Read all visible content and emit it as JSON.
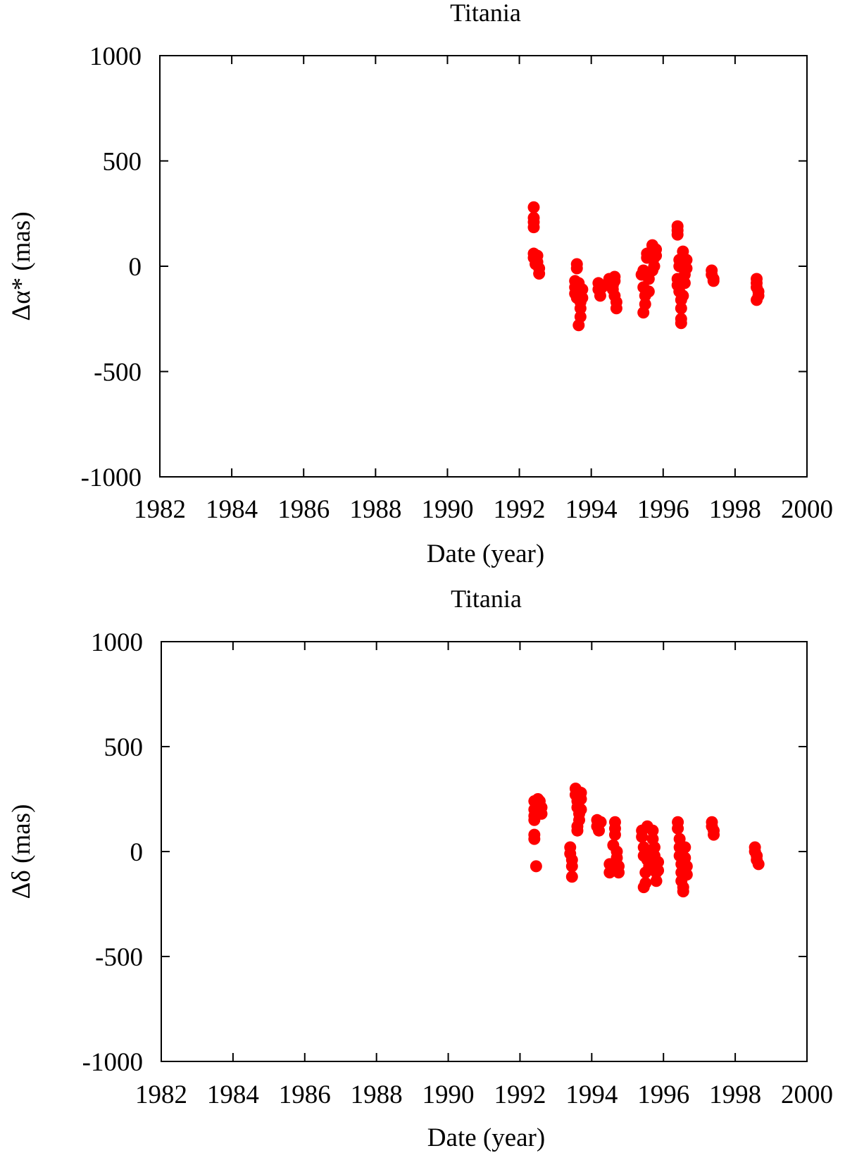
{
  "chart_data": [
    {
      "type": "scatter",
      "title": "Titania",
      "xlabel": "Date (year)",
      "ylabel": "Δα* (mas)",
      "xlim": [
        1982,
        2000
      ],
      "ylim": [
        -1000,
        1000
      ],
      "xticks": [
        1982,
        1984,
        1986,
        1988,
        1990,
        1992,
        1994,
        1996,
        1998,
        2000
      ],
      "yticks": [
        1000,
        500,
        0,
        -500,
        -1000
      ],
      "grid": false,
      "marker_color": "#ff0000",
      "points": [
        [
          1992.4,
          280
        ],
        [
          1992.4,
          230
        ],
        [
          1992.4,
          210
        ],
        [
          1992.4,
          185
        ],
        [
          1992.4,
          60
        ],
        [
          1992.4,
          40
        ],
        [
          1992.45,
          30
        ],
        [
          1992.45,
          10
        ],
        [
          1992.5,
          50
        ],
        [
          1992.5,
          20
        ],
        [
          1992.55,
          -10
        ],
        [
          1992.55,
          -35
        ],
        [
          1993.6,
          10
        ],
        [
          1993.6,
          -10
        ],
        [
          1993.55,
          -70
        ],
        [
          1993.55,
          -100
        ],
        [
          1993.55,
          -130
        ],
        [
          1993.6,
          -150
        ],
        [
          1993.65,
          -80
        ],
        [
          1993.65,
          -120
        ],
        [
          1993.7,
          -170
        ],
        [
          1993.7,
          -200
        ],
        [
          1993.7,
          -240
        ],
        [
          1993.65,
          -280
        ],
        [
          1993.75,
          -110
        ],
        [
          1993.75,
          -150
        ],
        [
          1994.2,
          -80
        ],
        [
          1994.2,
          -110
        ],
        [
          1994.25,
          -140
        ],
        [
          1994.3,
          -100
        ],
        [
          1994.5,
          -60
        ],
        [
          1994.55,
          -80
        ],
        [
          1994.6,
          -110
        ],
        [
          1994.6,
          -90
        ],
        [
          1994.65,
          -50
        ],
        [
          1994.65,
          -140
        ],
        [
          1994.7,
          -170
        ],
        [
          1994.7,
          -200
        ],
        [
          1994.65,
          -70
        ],
        [
          1995.4,
          -40
        ],
        [
          1995.45,
          -20
        ],
        [
          1995.45,
          -100
        ],
        [
          1995.5,
          -140
        ],
        [
          1995.5,
          -180
        ],
        [
          1995.45,
          -220
        ],
        [
          1995.55,
          40
        ],
        [
          1995.55,
          60
        ],
        [
          1995.6,
          -60
        ],
        [
          1995.6,
          -120
        ],
        [
          1995.7,
          80
        ],
        [
          1995.7,
          100
        ],
        [
          1995.75,
          40
        ],
        [
          1995.75,
          0
        ],
        [
          1995.8,
          80
        ],
        [
          1995.8,
          50
        ],
        [
          1995.7,
          -20
        ],
        [
          1996.4,
          190
        ],
        [
          1996.4,
          170
        ],
        [
          1996.4,
          150
        ],
        [
          1996.45,
          30
        ],
        [
          1996.45,
          0
        ],
        [
          1996.4,
          -60
        ],
        [
          1996.4,
          -90
        ],
        [
          1996.45,
          -120
        ],
        [
          1996.5,
          -160
        ],
        [
          1996.5,
          -200
        ],
        [
          1996.5,
          -250
        ],
        [
          1996.5,
          -270
        ],
        [
          1996.55,
          70
        ],
        [
          1996.55,
          40
        ],
        [
          1996.6,
          10
        ],
        [
          1996.6,
          -40
        ],
        [
          1996.6,
          -80
        ],
        [
          1996.55,
          -140
        ],
        [
          1996.65,
          30
        ],
        [
          1996.65,
          -10
        ],
        [
          1997.35,
          -20
        ],
        [
          1997.35,
          -40
        ],
        [
          1997.4,
          -60
        ],
        [
          1997.4,
          -70
        ],
        [
          1998.6,
          -60
        ],
        [
          1998.6,
          -80
        ],
        [
          1998.6,
          -100
        ],
        [
          1998.65,
          -120
        ],
        [
          1998.65,
          -140
        ],
        [
          1998.6,
          -160
        ]
      ]
    },
    {
      "type": "scatter",
      "title": "Titania",
      "xlabel": "Date (year)",
      "ylabel": "Δδ (mas)",
      "xlim": [
        1982,
        2000
      ],
      "ylim": [
        -1000,
        1000
      ],
      "xticks": [
        1982,
        1984,
        1986,
        1988,
        1990,
        1992,
        1994,
        1996,
        1998,
        2000
      ],
      "yticks": [
        1000,
        500,
        0,
        -500,
        -1000
      ],
      "grid": false,
      "marker_color": "#ff0000",
      "points": [
        [
          1992.4,
          240
        ],
        [
          1992.4,
          200
        ],
        [
          1992.4,
          170
        ],
        [
          1992.4,
          150
        ],
        [
          1992.4,
          80
        ],
        [
          1992.4,
          60
        ],
        [
          1992.45,
          -70
        ],
        [
          1992.5,
          250
        ],
        [
          1992.5,
          220
        ],
        [
          1992.55,
          190
        ],
        [
          1992.55,
          240
        ],
        [
          1992.6,
          210
        ],
        [
          1992.6,
          180
        ],
        [
          1993.4,
          20
        ],
        [
          1993.4,
          -10
        ],
        [
          1993.45,
          -40
        ],
        [
          1993.45,
          -70
        ],
        [
          1993.45,
          -120
        ],
        [
          1993.55,
          300
        ],
        [
          1993.55,
          270
        ],
        [
          1993.6,
          240
        ],
        [
          1993.6,
          210
        ],
        [
          1993.65,
          180
        ],
        [
          1993.65,
          150
        ],
        [
          1993.6,
          120
        ],
        [
          1993.6,
          100
        ],
        [
          1993.7,
          280
        ],
        [
          1993.7,
          250
        ],
        [
          1993.7,
          200
        ],
        [
          1994.15,
          150
        ],
        [
          1994.15,
          120
        ],
        [
          1994.2,
          100
        ],
        [
          1994.25,
          140
        ],
        [
          1994.5,
          -60
        ],
        [
          1994.5,
          -100
        ],
        [
          1994.6,
          -80
        ],
        [
          1994.6,
          30
        ],
        [
          1994.65,
          80
        ],
        [
          1994.65,
          140
        ],
        [
          1994.65,
          110
        ],
        [
          1994.7,
          -30
        ],
        [
          1994.7,
          0
        ],
        [
          1994.75,
          -70
        ],
        [
          1994.75,
          -100
        ],
        [
          1995.4,
          100
        ],
        [
          1995.4,
          70
        ],
        [
          1995.45,
          20
        ],
        [
          1995.45,
          -20
        ],
        [
          1995.45,
          -170
        ],
        [
          1995.5,
          -150
        ],
        [
          1995.5,
          -100
        ],
        [
          1995.55,
          120
        ],
        [
          1995.55,
          -40
        ],
        [
          1995.6,
          -70
        ],
        [
          1995.6,
          0
        ],
        [
          1995.7,
          100
        ],
        [
          1995.7,
          60
        ],
        [
          1995.75,
          20
        ],
        [
          1995.75,
          -20
        ],
        [
          1995.75,
          -60
        ],
        [
          1995.8,
          -100
        ],
        [
          1995.8,
          -140
        ],
        [
          1995.85,
          -50
        ],
        [
          1995.85,
          -90
        ],
        [
          1996.4,
          140
        ],
        [
          1996.4,
          110
        ],
        [
          1996.45,
          60
        ],
        [
          1996.45,
          20
        ],
        [
          1996.45,
          -20
        ],
        [
          1996.5,
          -60
        ],
        [
          1996.5,
          -100
        ],
        [
          1996.5,
          -140
        ],
        [
          1996.55,
          -170
        ],
        [
          1996.55,
          -190
        ],
        [
          1996.6,
          20
        ],
        [
          1996.6,
          -30
        ],
        [
          1996.65,
          -70
        ],
        [
          1996.65,
          -110
        ],
        [
          1997.35,
          140
        ],
        [
          1997.35,
          120
        ],
        [
          1997.4,
          100
        ],
        [
          1997.4,
          80
        ],
        [
          1998.55,
          20
        ],
        [
          1998.55,
          0
        ],
        [
          1998.6,
          -20
        ],
        [
          1998.6,
          -40
        ],
        [
          1998.65,
          -60
        ]
      ]
    }
  ]
}
